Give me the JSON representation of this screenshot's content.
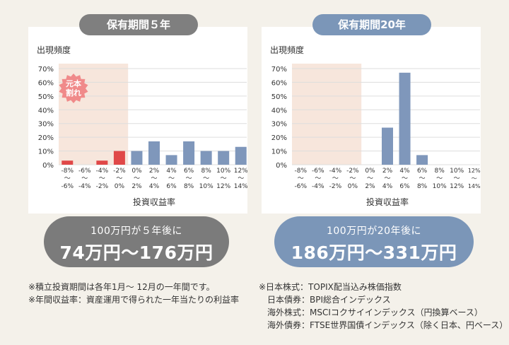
{
  "left_panel": {
    "pill_label": "保有期間５年",
    "result_line1": "100万円が５年後に",
    "result_line2": "74万円〜176万円"
  },
  "right_panel": {
    "pill_label": "保有期間20年",
    "result_line1": "100万円が20年後に",
    "result_line2": "186万円〜331万円"
  },
  "badge_label": [
    "元本",
    "割れ"
  ],
  "notes_left": [
    "※積立投資期間は各年1月〜 12月の一年間です。",
    "※年間収益率：資産運用で得られた一年当たりの利益率"
  ],
  "notes_right": [
    "※日本株式：TOPIX配当込み株価指数",
    "日本債券：BPI総合インデックス",
    "海外株式：MSCIコクサイインデックス（円換算ベース）",
    "海外債券：FTSE世界国債インデックス（除く日本、円ベース）"
  ],
  "colors": {
    "loss_bar": "#e04848",
    "bar_5y": "#7f97bb",
    "bar_20y": "#7f97bb",
    "loss_zone": "#f7e6dc",
    "badge": "#f08a8a"
  },
  "chart_data": [
    {
      "type": "bar",
      "title": "保有期間５年",
      "ylabel": "出現頻度",
      "xlabel": "投資収益率",
      "ylim": [
        0,
        70
      ],
      "yticks": [
        "0%",
        "10%",
        "20%",
        "30%",
        "40%",
        "50%",
        "60%",
        "70%"
      ],
      "categories": [
        [
          "-8%",
          "〜",
          "-6%"
        ],
        [
          "-6%",
          "〜",
          "-4%"
        ],
        [
          "-4%",
          "〜",
          "-2%"
        ],
        [
          "-2%",
          "〜",
          "0%"
        ],
        [
          "0%",
          "〜",
          "2%"
        ],
        [
          "2%",
          "〜",
          "4%"
        ],
        [
          "4%",
          "〜",
          "6%"
        ],
        [
          "6%",
          "〜",
          "8%"
        ],
        [
          "8%",
          "〜",
          "10%"
        ],
        [
          "10%",
          "〜",
          "12%"
        ],
        [
          "12%",
          "〜",
          "14%"
        ]
      ],
      "values": [
        3,
        0,
        3,
        10,
        10,
        17,
        7,
        17,
        10,
        10,
        13
      ],
      "loss_categories": 4
    },
    {
      "type": "bar",
      "title": "保有期間20年",
      "ylabel": "出現頻度",
      "xlabel": "投資収益率",
      "ylim": [
        0,
        70
      ],
      "yticks": [
        "0%",
        "10%",
        "20%",
        "30%",
        "40%",
        "50%",
        "60%",
        "70%"
      ],
      "categories": [
        [
          "-8%",
          "〜",
          "-6%"
        ],
        [
          "-6%",
          "〜",
          "-4%"
        ],
        [
          "-4%",
          "〜",
          "-2%"
        ],
        [
          "-2%",
          "〜",
          "0%"
        ],
        [
          "0%",
          "〜",
          "2%"
        ],
        [
          "2%",
          "〜",
          "4%"
        ],
        [
          "4%",
          "〜",
          "6%"
        ],
        [
          "6%",
          "〜",
          "8%"
        ],
        [
          "8%",
          "〜",
          "10%"
        ],
        [
          "10%",
          "〜",
          "12%"
        ],
        [
          "12%",
          "〜",
          "14%"
        ]
      ],
      "values": [
        0,
        0,
        0,
        0,
        0,
        27,
        67,
        7,
        0,
        0,
        0
      ],
      "loss_categories": 4
    }
  ]
}
